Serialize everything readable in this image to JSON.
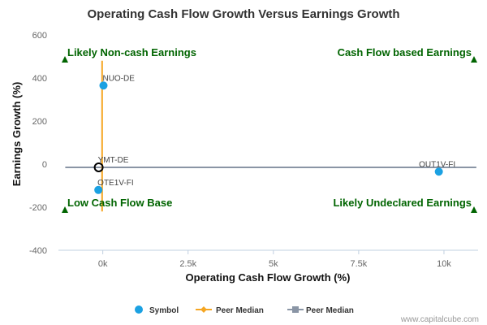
{
  "chart_data": {
    "type": "scatter",
    "title": "Operating Cash Flow Growth Versus Earnings Growth",
    "xlabel": "Operating Cash Flow Growth (%)",
    "ylabel": "Earnings Growth (%)",
    "xlim": [
      -1300,
      11000
    ],
    "ylim": [
      -400,
      600
    ],
    "xticks": [
      0,
      2500,
      5000,
      7500,
      10000
    ],
    "xtick_labels": [
      "0k",
      "2.5k",
      "5k",
      "7.5k",
      "10k"
    ],
    "yticks": [
      -400,
      -200,
      0,
      200,
      400,
      600
    ],
    "ytick_labels": [
      "-400",
      "-200",
      "0",
      "200",
      "400",
      "600"
    ],
    "grid": false,
    "legend_position": "bottom",
    "symbol_color": "#1ba1e2",
    "x_median_color": "#f5a623",
    "y_median_color": "#8a95a5",
    "quadrant_color": "#006400",
    "points": [
      {
        "label": "NUO-DE",
        "x": 20,
        "y": 365
      },
      {
        "label": "YMT-DE",
        "x": -120,
        "y": -15,
        "hollow": true
      },
      {
        "label": "OTE1V-FI",
        "x": -130,
        "y": -120
      },
      {
        "label": "OUT1V-FI",
        "x": 9850,
        "y": -35
      }
    ],
    "x_peer_median": {
      "value": -20,
      "from": -220,
      "to": 480
    },
    "y_peer_median": {
      "value": -15,
      "from": -1100,
      "to": 10950
    },
    "quadrant_labels": {
      "top_left": "Likely Non-cash Earnings",
      "top_right": "Cash Flow based Earnings",
      "bottom_left": "Low Cash Flow Base",
      "bottom_right": "Likely Undeclared Earnings"
    },
    "legend": [
      "Symbol",
      "Peer Median",
      "Peer Median"
    ]
  },
  "credit": "www.capitalcube.com"
}
